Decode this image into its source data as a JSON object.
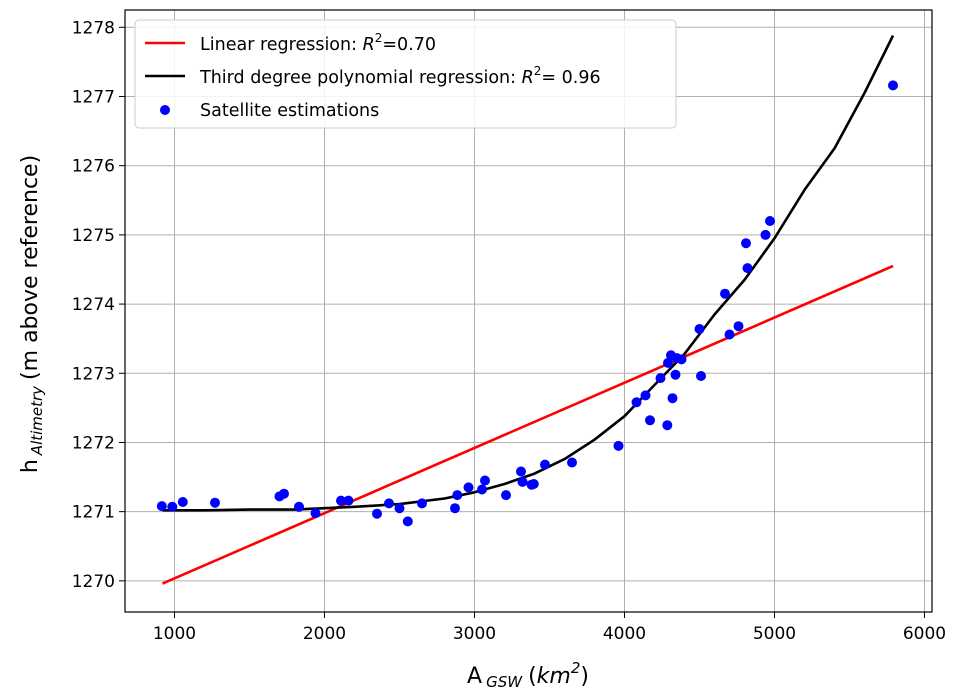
{
  "chart_data": {
    "type": "scatter",
    "xlim": [
      670,
      6050
    ],
    "ylim": [
      1269.55,
      1278.25
    ],
    "x_ticks": [
      1000,
      2000,
      3000,
      4000,
      5000,
      6000
    ],
    "y_ticks": [
      1270,
      1271,
      1272,
      1273,
      1274,
      1275,
      1276,
      1277,
      1278
    ],
    "grid": true,
    "legend_placement": "top-left",
    "xlabel": {
      "main": "A",
      "subscript": "GSW",
      "unit_open": "(",
      "unit_italic": "km",
      "unit_sup": "2",
      "unit_close": ")"
    },
    "ylabel": {
      "main": "h",
      "subscript": "Altimetry",
      "rest": "(m above reference)"
    },
    "legend": {
      "linear": {
        "prefix": "Linear regression: ",
        "r_symbol": "R",
        "sup": "2",
        "suffix": "=0.70"
      },
      "poly": {
        "prefix": "Third degree polynomial regression: ",
        "r_symbol": "R",
        "sup": "2",
        "suffix": "= 0.96"
      },
      "scatter": {
        "label": "Satellite estimations"
      }
    },
    "series": [
      {
        "name": "Linear regression",
        "kind": "line",
        "color": "#ff0000",
        "x": [
          920,
          5790
        ],
        "y": [
          1269.96,
          1274.55
        ]
      },
      {
        "name": "Third degree polynomial regression",
        "kind": "line",
        "color": "#000000",
        "x": [
          920,
          1200,
          1500,
          1800,
          2000,
          2200,
          2500,
          2800,
          3000,
          3200,
          3400,
          3600,
          3800,
          4000,
          4200,
          4400,
          4600,
          4800,
          5000,
          5200,
          5400,
          5600,
          5790
        ],
        "y": [
          1271.02,
          1271.02,
          1271.03,
          1271.03,
          1271.05,
          1271.07,
          1271.11,
          1271.19,
          1271.28,
          1271.4,
          1271.55,
          1271.76,
          1272.04,
          1272.38,
          1272.83,
          1273.28,
          1273.85,
          1274.35,
          1274.95,
          1275.65,
          1276.25,
          1277.05,
          1277.88
        ]
      },
      {
        "name": "Satellite estimations",
        "kind": "scatter",
        "color": "#0000ff",
        "x": [
          915,
          985,
          1055,
          1270,
          1700,
          1730,
          1830,
          1940,
          2110,
          2160,
          2350,
          2430,
          2500,
          2555,
          2650,
          2870,
          2885,
          2960,
          3050,
          3070,
          3210,
          3310,
          3320,
          3380,
          3395,
          3470,
          3650,
          3960,
          4080,
          4140,
          4170,
          4240,
          4285,
          4290,
          4310,
          4320,
          4340,
          4350,
          4380,
          4500,
          4510,
          4670,
          4700,
          4760,
          4810,
          4820,
          4940,
          4970,
          5790
        ],
        "y": [
          1271.08,
          1271.07,
          1271.14,
          1271.13,
          1271.22,
          1271.26,
          1271.07,
          1270.98,
          1271.16,
          1271.16,
          1270.97,
          1271.12,
          1271.05,
          1270.86,
          1271.12,
          1271.05,
          1271.24,
          1271.35,
          1271.32,
          1271.45,
          1271.24,
          1271.58,
          1271.43,
          1271.39,
          1271.4,
          1271.68,
          1271.71,
          1271.95,
          1272.58,
          1272.68,
          1272.32,
          1272.93,
          1272.25,
          1273.15,
          1273.26,
          1272.64,
          1272.98,
          1273.22,
          1273.2,
          1273.64,
          1272.96,
          1274.15,
          1273.56,
          1273.68,
          1274.88,
          1274.52,
          1275.0,
          1275.2,
          1277.16
        ]
      }
    ]
  }
}
